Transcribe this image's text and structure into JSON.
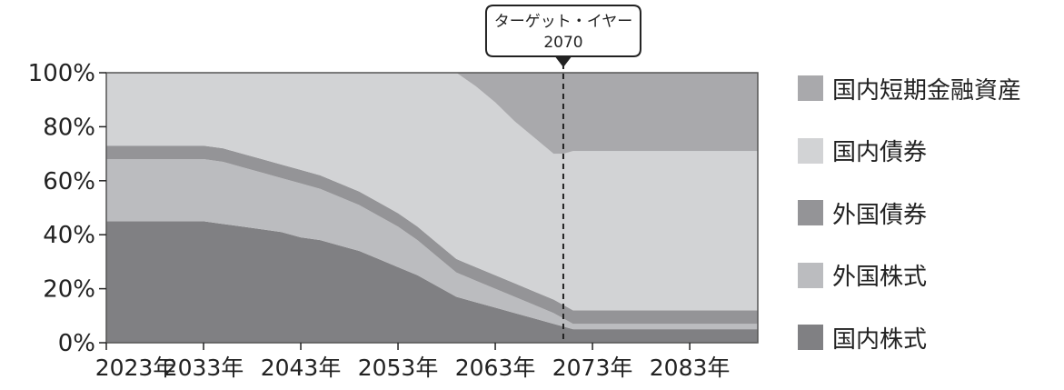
{
  "chart_data": {
    "type": "area",
    "stacked": true,
    "x": [
      2023,
      2025,
      2027,
      2029,
      2031,
      2033,
      2035,
      2037,
      2039,
      2041,
      2043,
      2045,
      2047,
      2049,
      2051,
      2053,
      2055,
      2057,
      2059,
      2061,
      2063,
      2065,
      2067,
      2069,
      2070,
      2071,
      2073,
      2075,
      2077,
      2079,
      2081,
      2083,
      2085,
      2087,
      2089,
      2090
    ],
    "xlim": [
      2023,
      2090
    ],
    "ylim": [
      0,
      100
    ],
    "y_ticks": [
      "0%",
      "20%",
      "40%",
      "60%",
      "80%",
      "100%"
    ],
    "x_ticks": [
      "2023年",
      "2033年",
      "2043年",
      "2053年",
      "2063年",
      "2073年",
      "2083年"
    ],
    "x_tick_values": [
      2023,
      2033,
      2043,
      2053,
      2063,
      2073,
      2083
    ],
    "series": [
      {
        "name": "国内株式",
        "color": "#808083",
        "values": [
          45,
          45,
          45,
          45,
          45,
          45,
          44,
          43,
          42,
          41,
          39,
          38,
          36,
          34,
          31,
          28,
          25,
          21,
          17,
          15,
          13,
          11,
          9,
          7,
          6,
          5,
          5,
          5,
          5,
          5,
          5,
          5,
          5,
          5,
          5,
          5
        ]
      },
      {
        "name": "外国株式",
        "color": "#bbbcbf",
        "values": [
          23,
          23,
          23,
          23,
          23,
          23,
          23,
          22,
          21,
          20,
          20,
          19,
          18,
          17,
          16,
          15,
          13,
          11,
          9,
          8,
          7,
          6,
          5,
          4,
          3,
          2,
          2,
          2,
          2,
          2,
          2,
          2,
          2,
          2,
          2,
          2
        ]
      },
      {
        "name": "外国債券",
        "color": "#949497",
        "values": [
          5,
          5,
          5,
          5,
          5,
          5,
          5,
          5,
          5,
          5,
          5,
          5,
          5,
          5,
          5,
          5,
          5,
          5,
          5,
          5,
          5,
          5,
          5,
          5,
          5,
          5,
          5,
          5,
          5,
          5,
          5,
          5,
          5,
          5,
          5,
          5
        ]
      },
      {
        "name": "国内債券",
        "color": "#d2d3d5",
        "values": [
          27,
          27,
          27,
          27,
          27,
          27,
          28,
          30,
          32,
          34,
          36,
          38,
          41,
          44,
          48,
          52,
          57,
          63,
          69,
          67,
          64,
          60,
          57,
          54,
          56,
          59,
          59,
          59,
          59,
          59,
          59,
          59,
          59,
          59,
          59,
          59
        ]
      },
      {
        "name": "国内短期金融資産",
        "color": "#a9a9ac",
        "values": [
          0,
          0,
          0,
          0,
          0,
          0,
          0,
          0,
          0,
          0,
          0,
          0,
          0,
          0,
          0,
          0,
          0,
          0,
          0,
          5,
          11,
          18,
          24,
          30,
          30,
          29,
          29,
          29,
          29,
          29,
          29,
          29,
          29,
          29,
          29,
          29
        ]
      }
    ],
    "annotation": {
      "label": "ターゲット・イヤー",
      "year_label": "2070",
      "x": 2070
    },
    "legend": {
      "placement": "right",
      "order_top_to_bottom": [
        "国内短期金融資産",
        "国内債券",
        "外国債券",
        "外国株式",
        "国内株式"
      ]
    },
    "grid": false
  }
}
